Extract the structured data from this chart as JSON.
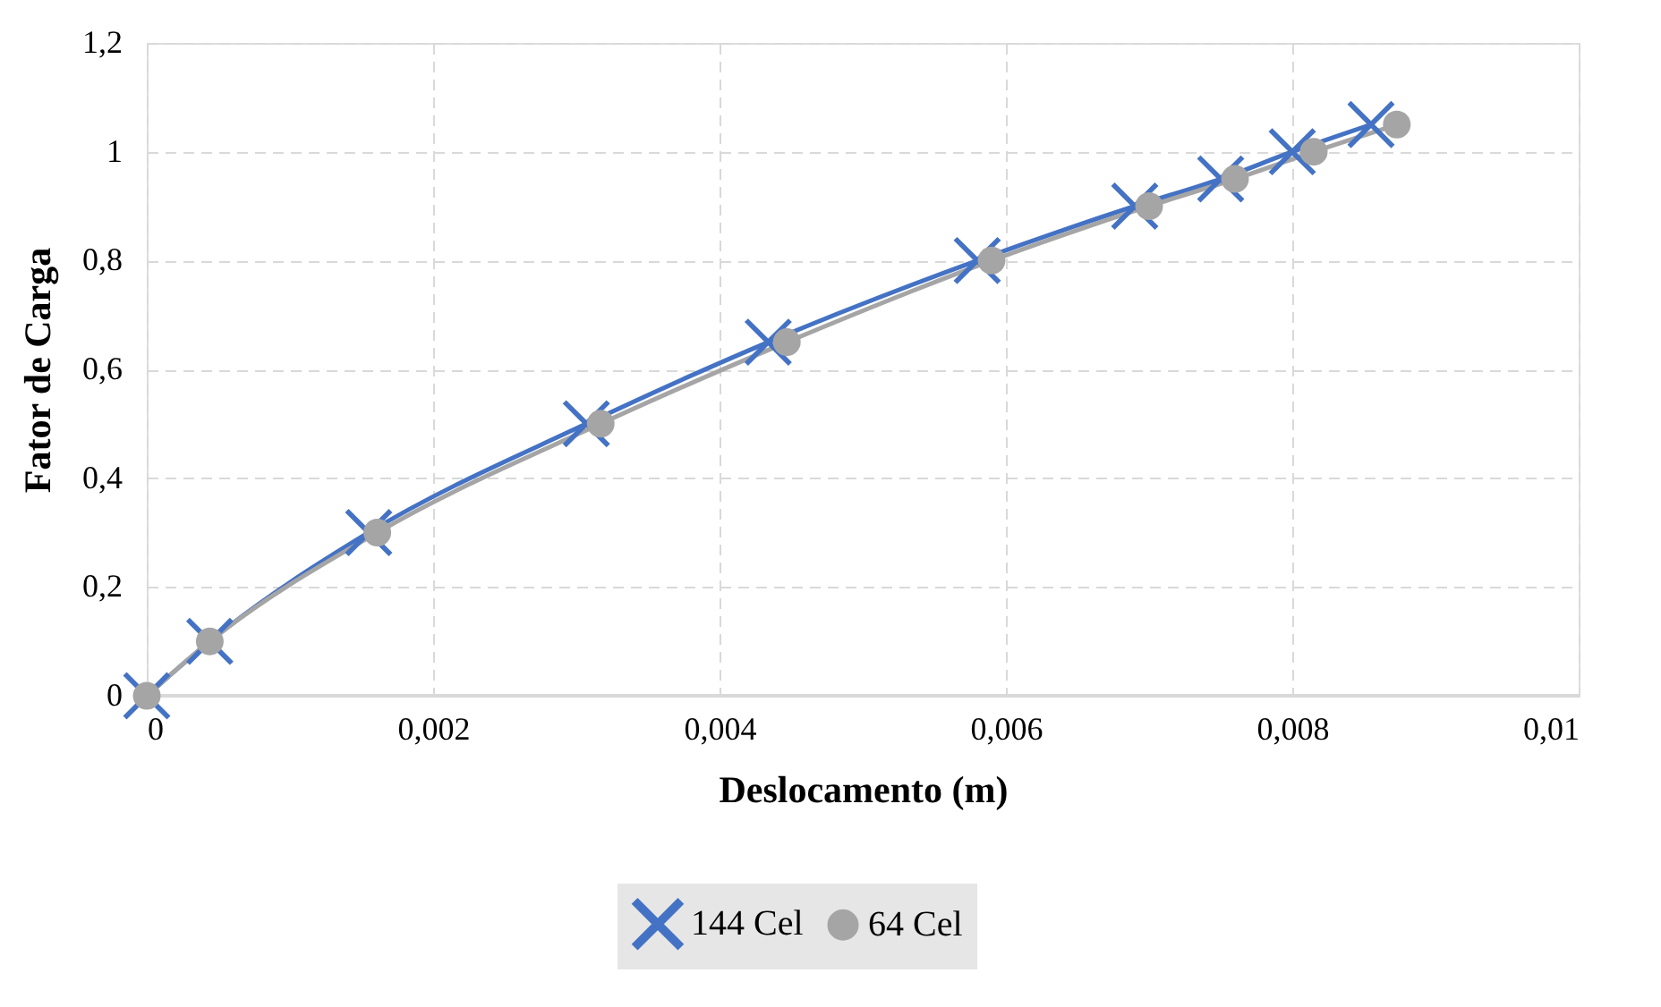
{
  "chart_data": {
    "type": "line",
    "xlabel": "Deslocamento (m)",
    "ylabel": "Fator de Carga",
    "xlim": [
      0,
      0.01
    ],
    "ylim": [
      0,
      1.2
    ],
    "xticks": [
      0,
      {
        "value": 0.002,
        "label": "0,002"
      },
      {
        "value": 0.004,
        "label": "0,004"
      },
      {
        "value": 0.006,
        "label": "0,006"
      },
      {
        "value": 0.008,
        "label": "0,008"
      },
      {
        "value": 0.01,
        "label": "0,01"
      }
    ],
    "yticks": [
      0,
      {
        "value": 0.2,
        "label": "0,2"
      },
      {
        "value": 0.4,
        "label": "0,4"
      },
      {
        "value": 0.6,
        "label": "0,6"
      },
      {
        "value": 0.8,
        "label": "0,8"
      },
      1,
      {
        "value": 1.2,
        "label": "1,2"
      }
    ],
    "grid": true,
    "legend": "bottom",
    "series": [
      {
        "name": "144 Cel",
        "color": "#4472c4",
        "marker": "cross",
        "x": [
          0,
          0.00044,
          0.00155,
          0.00307,
          0.00434,
          0.0058,
          0.0069,
          0.0075,
          0.008,
          0.00855
        ],
        "values": [
          0,
          0.1,
          0.3,
          0.5,
          0.65,
          0.8,
          0.9,
          0.95,
          1.0,
          1.05
        ]
      },
      {
        "name": "64 Cel",
        "color": "#a5a5a5",
        "marker": "circle",
        "x": [
          0,
          0.00044,
          0.00161,
          0.00317,
          0.00447,
          0.0059,
          0.007,
          0.0076,
          0.00815,
          0.00873
        ],
        "values": [
          0,
          0.1,
          0.3,
          0.5,
          0.65,
          0.8,
          0.9,
          0.95,
          1.0,
          1.05
        ]
      }
    ]
  }
}
